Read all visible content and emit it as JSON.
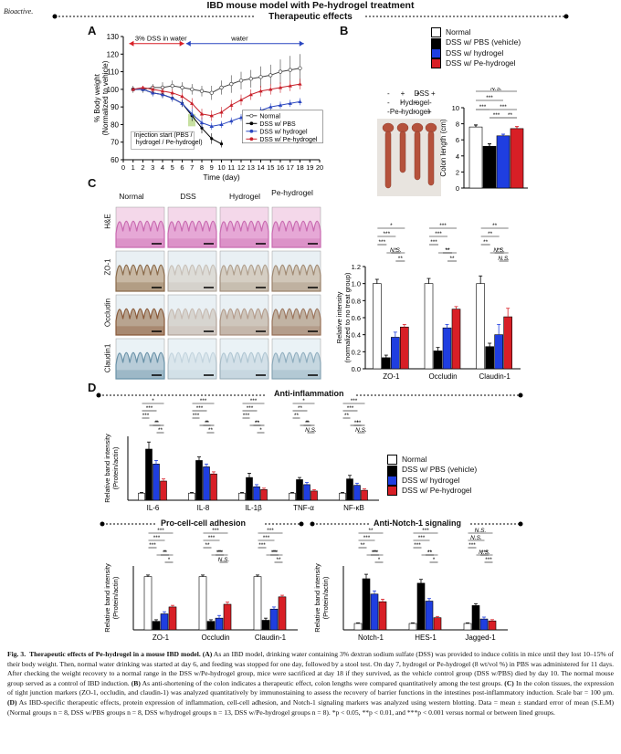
{
  "header": {
    "journal": "Bioactive.",
    "title": "IBD mouse model with Pe-hydrogel treatment",
    "subtitle": "Therapeutic effects"
  },
  "colors": {
    "normal": "#ffffff",
    "pbs": "#000000",
    "hydrogel": "#1f3ee0",
    "pe": "#d81f26",
    "line_normal": "#444444",
    "line_pbs": "#000000",
    "line_hydrogel": "#2a46c0",
    "line_pe": "#c8202a",
    "arrow_red": "#d81f26",
    "arrow_blue": "#2a46c0"
  },
  "panelA": {
    "letter": "A",
    "chart_data": {
      "type": "line",
      "xlabel": "Time (day)",
      "ylabel": "% Body weight (Normalized to vehicle)",
      "xlim": [
        0,
        20
      ],
      "ylim": [
        60,
        130
      ],
      "xticks": [
        "0",
        "1",
        "2",
        "3",
        "4",
        "5",
        "6",
        "7",
        "8",
        "9",
        "10",
        "11",
        "12",
        "13",
        "14",
        "15",
        "16",
        "17",
        "18",
        "19",
        "20"
      ],
      "yticks": [
        "60",
        "70",
        "80",
        "90",
        "100",
        "110",
        "120",
        "130"
      ],
      "annotations": {
        "dss": "3% DSS in water",
        "water": "water",
        "injection": "Injection start  (PBS / hydrogel / Pe-hydrogel)"
      },
      "legend": [
        "Normal",
        "DSS w/ PBS",
        "DSS w/ hydrogel",
        "DSS w/ Pe-hydrogel"
      ],
      "series": [
        {
          "name": "Normal",
          "x": [
            1,
            2,
            3,
            4,
            5,
            6,
            7,
            8,
            9,
            10,
            11,
            12,
            13,
            14,
            15,
            16,
            17,
            18
          ],
          "y": [
            100,
            100,
            101,
            101,
            102,
            101,
            100,
            99,
            98,
            101,
            103,
            105,
            106,
            107,
            108,
            110,
            111,
            112
          ],
          "err": [
            2,
            2,
            2,
            3,
            3,
            3,
            3,
            3,
            4,
            4,
            5,
            5,
            5,
            6,
            6,
            7,
            8,
            8
          ]
        },
        {
          "name": "DSS w/ PBS",
          "x": [
            1,
            2,
            3,
            4,
            5,
            6,
            7,
            8,
            9,
            10
          ],
          "y": [
            100,
            100,
            98,
            97,
            95,
            92,
            85,
            78,
            72,
            69
          ],
          "err": [
            1,
            1,
            2,
            2,
            2,
            2,
            3,
            3,
            3,
            2
          ]
        },
        {
          "name": "DSS w/ hydrogel",
          "x": [
            1,
            2,
            3,
            4,
            5,
            6,
            7,
            8,
            9,
            10,
            11,
            12,
            13,
            14,
            15,
            16,
            17,
            18
          ],
          "y": [
            100,
            100,
            98,
            97,
            95,
            92,
            86,
            81,
            79,
            80,
            82,
            84,
            86,
            88,
            90,
            91,
            92,
            93
          ],
          "err": [
            1,
            1,
            2,
            2,
            2,
            2,
            3,
            3,
            2,
            2,
            2,
            2,
            2,
            2,
            2,
            2,
            2,
            2
          ]
        },
        {
          "name": "DSS w/ Pe-hydrogel",
          "x": [
            1,
            2,
            3,
            4,
            5,
            6,
            7,
            8,
            9,
            10,
            11,
            12,
            13,
            14,
            15,
            16,
            17,
            18
          ],
          "y": [
            100,
            101,
            100,
            99,
            98,
            96,
            92,
            86,
            85,
            87,
            91,
            94,
            97,
            99,
            100,
            101,
            102,
            103
          ],
          "err": [
            1,
            1,
            2,
            2,
            2,
            2,
            3,
            3,
            3,
            3,
            3,
            3,
            3,
            3,
            3,
            3,
            3,
            3
          ]
        }
      ]
    }
  },
  "panelB": {
    "letter": "B",
    "legend": [
      "Normal",
      "DSS w/ PBS (vehicle)",
      "DSS w/ hydrogel",
      "DSS w/ Pe-hydrogel"
    ],
    "photo_rows": [
      {
        "label": "DSS",
        "marks": [
          "-",
          "+",
          "+",
          "+"
        ]
      },
      {
        "label": "Hydrogel",
        "marks": [
          "-",
          "-",
          "+",
          "-"
        ]
      },
      {
        "label": "Pe-hydrogel",
        "marks": [
          "-",
          "-",
          "-",
          "+"
        ]
      }
    ],
    "chart_data": {
      "type": "bar",
      "categories": [
        "Normal",
        "DSS w/ PBS (vehicle)",
        "DSS w/ hydrogel",
        "DSS w/ Pe-hydrogel"
      ],
      "values": [
        7.6,
        5.2,
        6.5,
        7.4
      ],
      "err": [
        0.25,
        0.3,
        0.2,
        0.25
      ],
      "ylabel": "Colon length (cm)",
      "ylim": [
        0,
        10
      ],
      "yticks": [
        "0",
        "2",
        "4",
        "6",
        "8",
        "10"
      ],
      "sig": [
        "N.S.",
        "***",
        "***",
        "***",
        "***",
        "**"
      ]
    }
  },
  "panelC": {
    "letter": "C",
    "columns": [
      "Normal",
      "DSS",
      "Hydrogel",
      "Pe-hydrogel"
    ],
    "rows": [
      "H&E",
      "ZO-1",
      "Occludin",
      "Claudin1"
    ],
    "chart_data": {
      "type": "bar",
      "ylabel": "Relative intensity (normalized to no treat group)",
      "ylim": [
        0,
        1.2
      ],
      "yticks": [
        "0.0",
        "0.2",
        "0.4",
        "0.6",
        "0.8",
        "1.0",
        "1.2"
      ],
      "categories": [
        "ZO-1",
        "Occludin",
        "Claudin-1"
      ],
      "series": [
        {
          "name": "Normal",
          "values": [
            1.0,
            1.0,
            1.0
          ],
          "err": [
            0.05,
            0.06,
            0.09
          ]
        },
        {
          "name": "DSS w/ PBS (vehicle)",
          "values": [
            0.13,
            0.21,
            0.26
          ],
          "err": [
            0.03,
            0.04,
            0.04
          ]
        },
        {
          "name": "DSS w/ hydrogel",
          "values": [
            0.37,
            0.48,
            0.4
          ],
          "err": [
            0.06,
            0.04,
            0.12
          ]
        },
        {
          "name": "DSS w/ Pe-hydrogel",
          "values": [
            0.49,
            0.7,
            0.61
          ],
          "err": [
            0.03,
            0.03,
            0.1
          ]
        }
      ],
      "sig": [
        [
          "*",
          "***",
          "***",
          "*",
          "**",
          "N.S."
        ],
        [
          "***",
          "***",
          "***",
          "**",
          "**",
          "**"
        ],
        [
          "**",
          "**",
          "**",
          "**",
          "N.S.",
          "N.S."
        ]
      ]
    }
  },
  "panelD": {
    "letter": "D",
    "legend": [
      "Normal",
      "DSS w/ PBS (vehicle)",
      "DSS w/ hydrogel",
      "DSS w/ Pe-hydrogel"
    ],
    "inflammation": {
      "title": "Anti-inflammation",
      "chart_data": {
        "type": "bar",
        "ylabel": "Relative band intensity (Protein/actin)",
        "categories": [
          "IL-6",
          "IL-8",
          "IL-1β",
          "TNF-α",
          "NF-κB"
        ],
        "ylim": [
          0,
          9
        ],
        "series": [
          {
            "name": "Normal",
            "values": [
              1,
              1,
              1,
              1,
              1
            ],
            "err": [
              0.1,
              0.1,
              0.1,
              0.1,
              0.1
            ]
          },
          {
            "name": "DSS w/ PBS (vehicle)",
            "values": [
              7.2,
              5.6,
              3.2,
              2.9,
              3.0
            ],
            "err": [
              1.0,
              0.5,
              0.6,
              0.3,
              0.5
            ]
          },
          {
            "name": "DSS w/ hydrogel",
            "values": [
              5.1,
              4.7,
              1.9,
              2.2,
              2.1
            ],
            "err": [
              0.5,
              0.4,
              0.3,
              0.3,
              0.3
            ]
          },
          {
            "name": "DSS w/ Pe-hydrogel",
            "values": [
              2.7,
              3.7,
              1.5,
              1.3,
              1.4
            ],
            "err": [
              0.3,
              0.3,
              0.2,
              0.2,
              0.2
            ]
          }
        ],
        "sig": [
          [
            "*",
            "***",
            "***",
            "**",
            "**",
            "*"
          ],
          [
            "***",
            "***",
            "***",
            "**",
            "**",
            "*"
          ],
          [
            "***",
            "***",
            "***",
            "**",
            "*",
            "**"
          ],
          [
            "*",
            "**",
            "**",
            "*",
            "N.S.",
            "**"
          ],
          [
            "***",
            "***",
            "**",
            "*",
            "N.S.",
            "***"
          ]
        ]
      }
    },
    "adhesion": {
      "title": "Pro-cell-cell adhesion",
      "chart_data": {
        "type": "bar",
        "ylabel": "Relative band intensity (Protein/actin)",
        "categories": [
          "ZO-1",
          "Occludin",
          "Claudin-1"
        ],
        "ylim": [
          0,
          1.2
        ],
        "series": [
          {
            "name": "Normal",
            "values": [
              1.0,
              1.0,
              1.0
            ],
            "err": [
              0.03,
              0.03,
              0.03
            ]
          },
          {
            "name": "DSS w/ PBS (vehicle)",
            "values": [
              0.16,
              0.16,
              0.18
            ],
            "err": [
              0.03,
              0.03,
              0.04
            ]
          },
          {
            "name": "DSS w/ hydrogel",
            "values": [
              0.3,
              0.22,
              0.39
            ],
            "err": [
              0.04,
              0.05,
              0.04
            ]
          },
          {
            "name": "DSS w/ Pe-hydrogel",
            "values": [
              0.43,
              0.48,
              0.62
            ],
            "err": [
              0.03,
              0.04,
              0.03
            ]
          }
        ],
        "sig": [
          [
            "***",
            "***",
            "***",
            "**",
            "*",
            "*"
          ],
          [
            "***",
            "***",
            "**",
            "***",
            "N.S.",
            "**"
          ],
          [
            "***",
            "***",
            "***",
            "***",
            "**",
            "**"
          ]
        ]
      }
    },
    "notch": {
      "title": "Anti-Notch-1 signaling",
      "chart_data": {
        "type": "bar",
        "ylabel": "Relative band intensity (Protein/actin)",
        "categories": [
          "Notch-1",
          "HES-1",
          "Jagged-1"
        ],
        "ylim": [
          0,
          10
        ],
        "series": [
          {
            "name": "Normal",
            "values": [
              1,
              1,
              1
            ],
            "err": [
              0.1,
              0.1,
              0.1
            ]
          },
          {
            "name": "DSS w/ PBS (vehicle)",
            "values": [
              8.0,
              7.3,
              3.8
            ],
            "err": [
              0.7,
              0.6,
              0.3
            ]
          },
          {
            "name": "DSS w/ hydrogel",
            "values": [
              5.6,
              4.5,
              1.7
            ],
            "err": [
              0.5,
              0.4,
              0.3
            ]
          },
          {
            "name": "DSS w/ Pe-hydrogel",
            "values": [
              4.4,
              1.9,
              1.4
            ],
            "err": [
              0.4,
              0.2,
              0.2
            ]
          }
        ],
        "sig": [
          [
            "**",
            "***",
            "**",
            "***",
            "*",
            "**"
          ],
          [
            "***",
            "***",
            "***",
            "**",
            "*",
            "**"
          ],
          [
            "N.S.",
            "N.S.",
            "***",
            "***",
            "***",
            "N.S."
          ]
        ]
      }
    }
  },
  "caption": {
    "fig": "Fig. 3.",
    "title": "Therapeutic effects of Pe-hydrogel in a mouse IBD model.",
    "a_label": "(A)",
    "a_text": "As an IBD model, drinking water containing 3% dextran sodium sulfate (DSS) was provided to induce colitis in mice until they lost 10–15% of their body weight. Then, normal water drinking was started at day 6, and feeding was stopped for one day, followed by a stool test. On day 7, hydrogel or Pe-hydrogel (8 wt/vol %) in PBS was administered for 11 days. After checking the weight recovery to a normal range in the DSS w/Pe-hydrogel group, mice were sacrificed at day 18 if they survived, as the vehicle control group (DSS w/PBS) died by day 10. The normal mouse group served as a control of IBD induction.",
    "b_label": "(B)",
    "b_text": "As anti-shortening of the colon indicates a therapeutic effect, colon lengths were compared quantitatively among the test groups.",
    "c_label": "(C)",
    "c_text": "In the colon tissues, the expression of tight junction markers (ZO-1, occludin, and claudin-1) was analyzed quantitatively by immunostaining to assess the recovery of barrier functions in the intestines post-inflammatory induction. Scale bar = 100 μm.",
    "d_label": "(D)",
    "d_text": "As IBD-specific therapeutic effects, protein expression of inflammation, cell-cell adhesion, and Notch-1 signaling markers was analyzed using western blotting. Data = mean ± standard error of mean (S.E.M) (Normal groups n = 8, DSS w/PBS groups n = 8, DSS w/hydrogel groups n = 13, DSS w/Pe-hydrogel groups n = 8). *p < 0.05, **p < 0.01, and ***p < 0.001 versus normal or between lined groups."
  }
}
